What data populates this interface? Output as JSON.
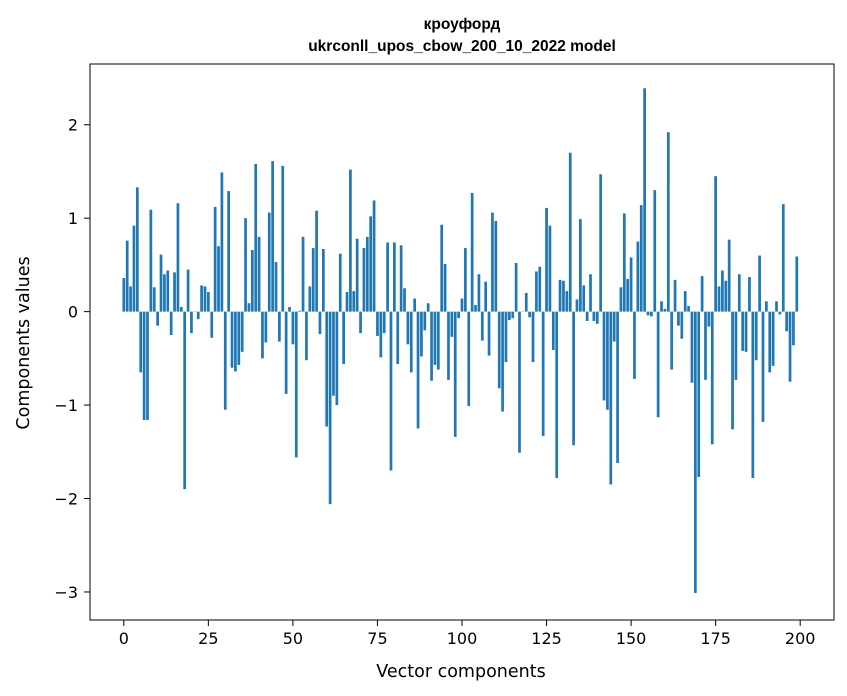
{
  "chart_data": {
    "type": "bar",
    "title_line1": "кроуфорд",
    "title_line2": "ukrconll_upos_cbow_200_10_2022 model",
    "xlabel": "Vector components",
    "ylabel": "Components values",
    "xlim": [
      -10,
      210
    ],
    "ylim": [
      -3.3,
      2.65
    ],
    "xticks": [
      0,
      25,
      50,
      75,
      100,
      125,
      150,
      175,
      200
    ],
    "yticks": [
      -3,
      -2,
      -1,
      0,
      1,
      2
    ],
    "ytick_labels": [
      "−3",
      "−2",
      "−1",
      "0",
      "1",
      "2"
    ],
    "bar_color": "#1f77b4",
    "grid": false,
    "values": [
      0.36,
      0.76,
      0.27,
      0.92,
      1.33,
      -0.65,
      -1.16,
      -1.16,
      1.09,
      0.26,
      -0.15,
      0.61,
      0.4,
      0.44,
      -0.25,
      0.42,
      1.16,
      0.05,
      -1.9,
      0.45,
      -0.23,
      0.0,
      -0.08,
      0.28,
      0.27,
      0.21,
      -0.28,
      1.12,
      0.7,
      1.49,
      -1.05,
      1.29,
      -0.6,
      -0.64,
      -0.57,
      -0.43,
      1.0,
      0.09,
      0.66,
      1.58,
      0.8,
      -0.5,
      -0.33,
      1.06,
      1.61,
      0.53,
      -0.32,
      1.56,
      -0.88,
      0.05,
      -0.35,
      -1.56,
      0.01,
      0.8,
      -0.52,
      0.27,
      0.68,
      1.08,
      -0.24,
      0.67,
      -1.23,
      -2.06,
      -0.9,
      -1.0,
      0.62,
      -0.56,
      0.21,
      1.52,
      0.22,
      0.78,
      -0.23,
      0.68,
      0.8,
      1.02,
      1.19,
      -0.26,
      -0.49,
      -0.23,
      0.74,
      -1.7,
      0.74,
      -0.56,
      0.71,
      0.25,
      -0.35,
      -0.65,
      0.14,
      -1.25,
      -0.48,
      -0.2,
      0.09,
      -0.74,
      -0.57,
      -0.62,
      0.93,
      0.51,
      -0.73,
      -0.27,
      -1.34,
      -0.07,
      0.14,
      0.68,
      -1.01,
      1.27,
      0.07,
      0.4,
      -0.31,
      0.32,
      -0.47,
      1.06,
      0.97,
      -0.82,
      -1.07,
      -0.54,
      -0.09,
      -0.07,
      0.52,
      -1.51,
      0.0,
      0.2,
      -0.06,
      -0.54,
      0.43,
      0.48,
      -1.33,
      1.11,
      0.92,
      -0.41,
      -1.78,
      0.34,
      0.33,
      0.22,
      1.7,
      -1.43,
      0.13,
      0.99,
      0.28,
      -0.1,
      0.4,
      -0.1,
      -0.13,
      1.47,
      -0.95,
      -1.05,
      -1.85,
      -0.32,
      -1.62,
      0.26,
      1.05,
      0.35,
      0.58,
      -0.72,
      0.75,
      1.14,
      2.39,
      -0.04,
      -0.05,
      1.3,
      -1.13,
      0.11,
      0.03,
      1.92,
      -0.62,
      0.34,
      -0.15,
      -0.29,
      0.22,
      0.06,
      -0.76,
      -3.01,
      -1.77,
      0.38,
      -0.73,
      -0.16,
      -1.42,
      1.45,
      0.27,
      0.44,
      0.33,
      0.77,
      -1.26,
      -0.73,
      0.4,
      -0.42,
      -0.43,
      0.37,
      -1.78,
      -0.52,
      0.6,
      -1.18,
      0.11,
      -0.65,
      -0.58,
      0.11,
      -0.03,
      1.15,
      -0.21,
      -0.75,
      -0.36,
      0.59
    ]
  }
}
